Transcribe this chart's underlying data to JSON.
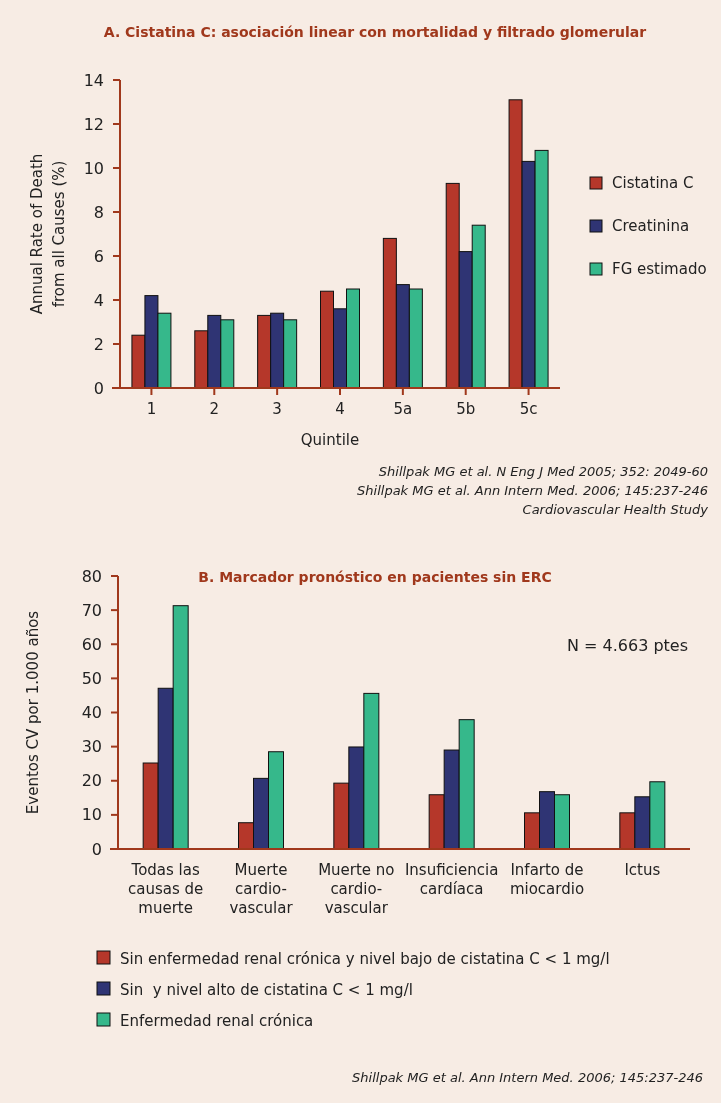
{
  "chart_data": [
    {
      "type": "bar",
      "title": "A. Cistatina C: asociación linear con mortalidad y filtrado glomerular",
      "xlabel": "Quintile",
      "ylabel": "Annual Rate of Death from all Causes (%)",
      "categories": [
        "1",
        "2",
        "3",
        "4",
        "5a",
        "5b",
        "5c"
      ],
      "series": [
        {
          "name": "Cistatina C",
          "color": "#b5372a",
          "values": [
            2.4,
            2.6,
            3.3,
            4.4,
            6.8,
            9.3,
            13.1
          ]
        },
        {
          "name": "Creatinina",
          "color": "#2f3474",
          "values": [
            4.2,
            3.3,
            3.4,
            3.6,
            4.7,
            6.2,
            10.3
          ]
        },
        {
          "name": "FG estimado",
          "color": "#36b88b",
          "values": [
            3.4,
            3.1,
            3.1,
            4.5,
            4.5,
            7.4,
            10.8
          ]
        }
      ],
      "ylim": [
        0,
        14
      ],
      "yticks": [
        0,
        2,
        4,
        6,
        8,
        10,
        12,
        14
      ],
      "legend": "right",
      "annotations": [
        "Shillpak MG et al. N Eng J Med 2005; 352: 2049-60",
        "Shillpak MG et al. Ann Intern Med. 2006; 145:237-246",
        "Cardiovascular Health Study"
      ]
    },
    {
      "type": "bar",
      "title": "B. Marcador pronóstico en pacientes sin ERC",
      "ylabel": "Eventos CV por 1.000 años",
      "categories": [
        "Todas las causas de muerte",
        "Muerte cardio-vascular",
        "Muerte no cardio-vascular",
        "Insuficiencia cardíaca",
        "Infarto de miocardio",
        "Ictus"
      ],
      "series": [
        {
          "name": "Sin enfermedad renal crónica y nivel bajo de cistatina C < 1 mg/l",
          "color": "#b5372a",
          "values": [
            25.2,
            7.7,
            19.3,
            15.9,
            10.6,
            10.6
          ]
        },
        {
          "name": "Sin  y nivel alto de cistatina C < 1 mg/l",
          "color": "#2f3474",
          "values": [
            47.1,
            20.7,
            29.9,
            29.0,
            16.8,
            15.3
          ]
        },
        {
          "name": "Enfermedad renal crónica",
          "color": "#36b88b",
          "values": [
            71.3,
            28.5,
            45.6,
            37.9,
            15.9,
            19.7
          ]
        }
      ],
      "ylim": [
        0,
        80
      ],
      "yticks": [
        0,
        10,
        20,
        30,
        40,
        50,
        60,
        70,
        80
      ],
      "legend": "bottom",
      "annotations": [
        "N = 4.663 ptes",
        "Shillpak MG et al. Ann Intern Med. 2006; 145:237-246"
      ]
    }
  ]
}
